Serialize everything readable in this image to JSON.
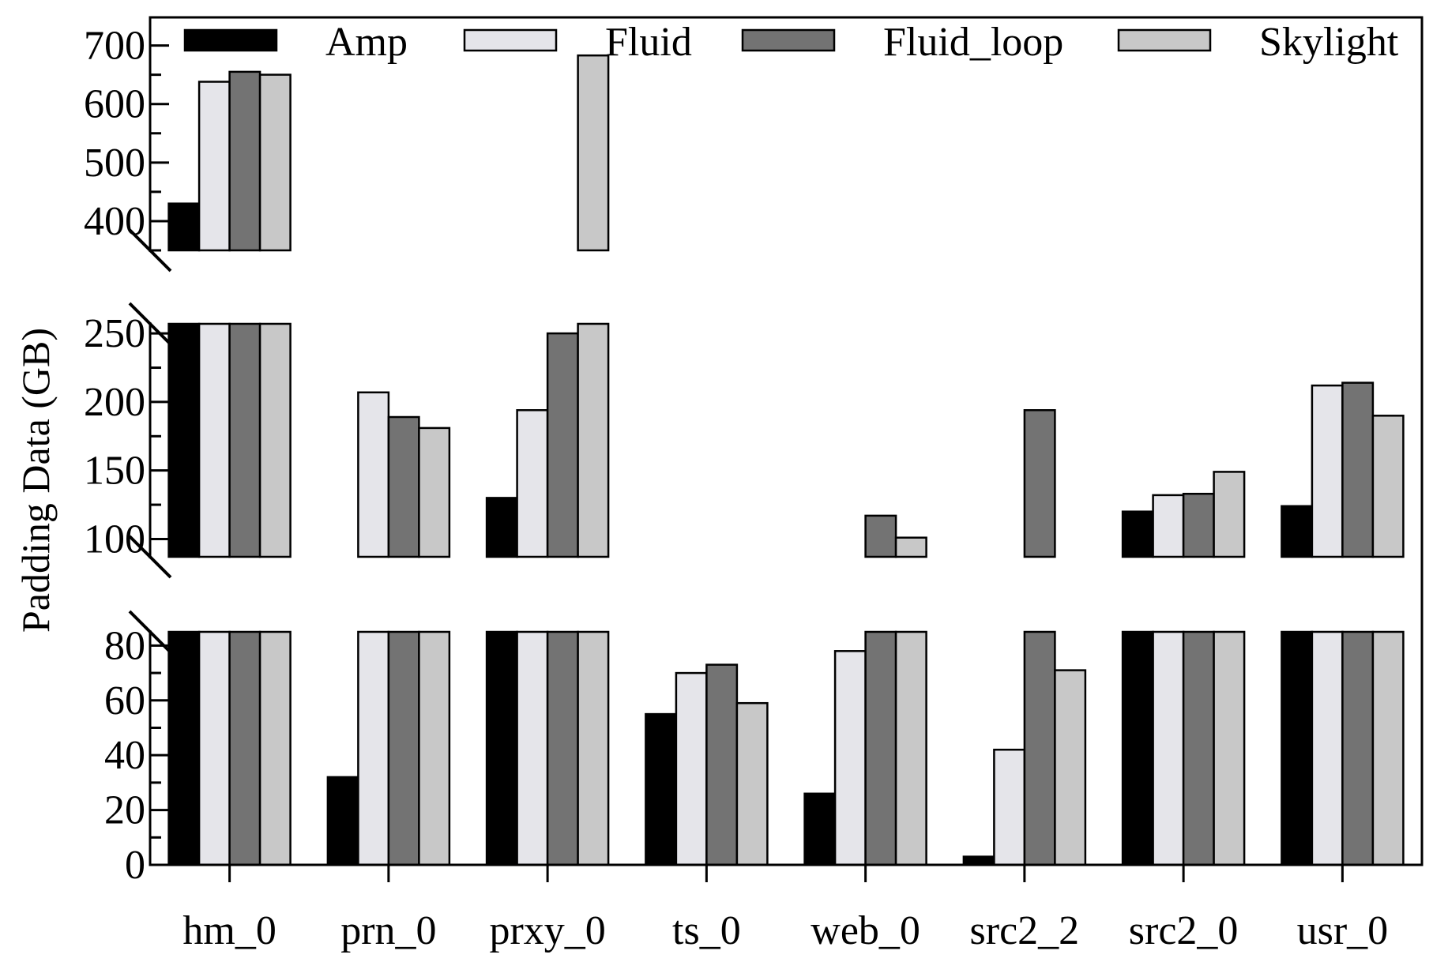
{
  "chart_data": {
    "type": "bar",
    "broken_axis": true,
    "ylabel": "Padding Data  (GB)",
    "xlabel": "",
    "categories": [
      "hm_0",
      "prn_0",
      "prxy_0",
      "ts_0",
      "web_0",
      "src2_2",
      "src2_0",
      "usr_0"
    ],
    "series": [
      {
        "name": "Amp",
        "color": "#000000",
        "values": [
          430,
          32,
          130,
          55,
          26,
          3,
          120,
          124
        ]
      },
      {
        "name": "Fluid",
        "color": "#e5e5ea",
        "values": [
          638,
          207,
          194,
          70,
          78,
          42,
          132,
          212
        ]
      },
      {
        "name": "Fluid_loop",
        "color": "#737373",
        "values": [
          655,
          189,
          250,
          73,
          117,
          194,
          133,
          214
        ]
      },
      {
        "name": "Skylight",
        "color": "#c8c8c8",
        "values": [
          650,
          181,
          683,
          59,
          101,
          71,
          149,
          190
        ]
      }
    ],
    "segments": [
      {
        "ylim": [
          0,
          85
        ],
        "ticks": [
          0,
          20,
          40,
          60,
          80
        ],
        "tick_labels": [
          "0",
          "20",
          "40",
          "60",
          "80"
        ]
      },
      {
        "ylim": [
          87,
          257
        ],
        "ticks": [
          100,
          150,
          200,
          250
        ],
        "tick_labels": [
          "100",
          "150",
          "200",
          "250"
        ]
      },
      {
        "ylim": [
          350,
          748
        ],
        "ticks": [
          400,
          500,
          600,
          700
        ],
        "tick_labels": [
          "400",
          "500",
          "600",
          "700"
        ]
      }
    ],
    "legend_position": "top"
  }
}
